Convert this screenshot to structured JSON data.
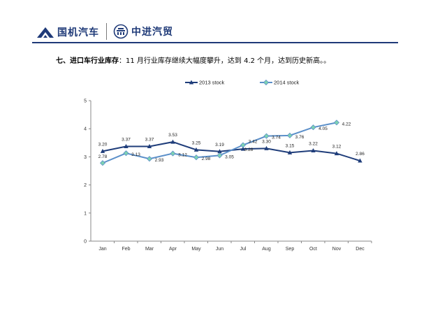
{
  "header": {
    "logo1_text": "国机汽车",
    "logo2_text": "中进汽贸",
    "brand_color": "#1f3a78"
  },
  "headline": {
    "lead": "七、进口车行业库存",
    "body": "：11 月行业库存继续大幅度攀升，达到 4.2 个月，达到历史新高。。"
  },
  "chart_data": {
    "type": "line",
    "categories": [
      "Jan",
      "Feb",
      "Mar",
      "Apr",
      "May",
      "Jun",
      "Jul",
      "Aug",
      "Sep",
      "Oct",
      "Nov",
      "Dec"
    ],
    "ylim": [
      0,
      5
    ],
    "yticks": [
      "0",
      "1",
      "2",
      "3",
      "4",
      "5"
    ],
    "legend_position": "top",
    "series": [
      {
        "name": "2013 stock",
        "color": "#1f3d7a",
        "marker": "triangle",
        "values": [
          3.2,
          3.37,
          3.37,
          3.53,
          3.25,
          3.19,
          3.28,
          3.3,
          3.15,
          3.22,
          3.12,
          2.86
        ],
        "labels": [
          "3.20",
          "3.37",
          "3.37",
          "3.53",
          "3.25",
          "3.19",
          "3.28",
          "3.30",
          "3.15",
          "3.22",
          "3.12",
          "2.86"
        ]
      },
      {
        "name": "2014 stock",
        "color": "#5b8fc9",
        "marker_fill": "#7ed3b2",
        "marker": "diamond",
        "values": [
          2.78,
          3.13,
          2.93,
          3.12,
          2.98,
          3.05,
          3.42,
          3.74,
          3.76,
          4.05,
          4.22,
          null
        ],
        "labels": [
          "2.78",
          "3.13",
          "2.93",
          "3.12",
          "2.98",
          "3.05",
          "3.42",
          "3.74",
          "3.76",
          "4.05",
          "4.22",
          ""
        ]
      }
    ]
  }
}
